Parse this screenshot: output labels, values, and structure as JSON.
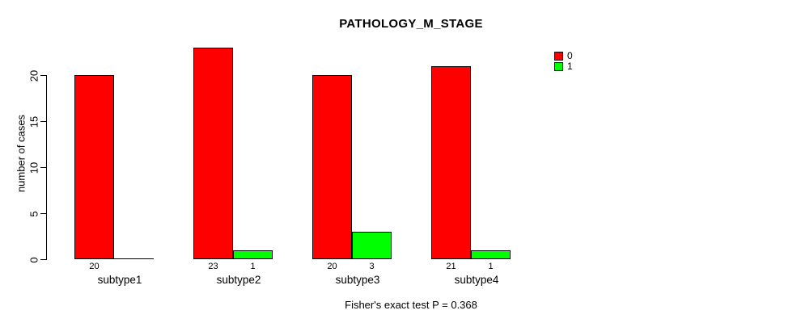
{
  "window": {
    "background": "#ffffff",
    "text_color": "#000000"
  },
  "chart_data": {
    "type": "bar",
    "title": "PATHOLOGY_M_STAGE",
    "ylabel": "number of cases",
    "xlabel": "",
    "footer": "Fisher's exact test P = 0.368",
    "categories": [
      "subtype1",
      "subtype2",
      "subtype3",
      "subtype4"
    ],
    "series": [
      {
        "name": "0",
        "color": "#FF0000",
        "values": [
          20,
          23,
          20,
          21
        ]
      },
      {
        "name": "1",
        "color": "#00FF00",
        "values": [
          0,
          1,
          3,
          1
        ]
      }
    ],
    "yticks": [
      0,
      5,
      10,
      15,
      20
    ],
    "ylim": [
      0,
      23
    ],
    "grid": false,
    "legend_position": "top-right",
    "bar_border_color": "#000000",
    "axis_color": "#000000",
    "value_labels_shown": true,
    "zero_values_unlabeled": true
  }
}
